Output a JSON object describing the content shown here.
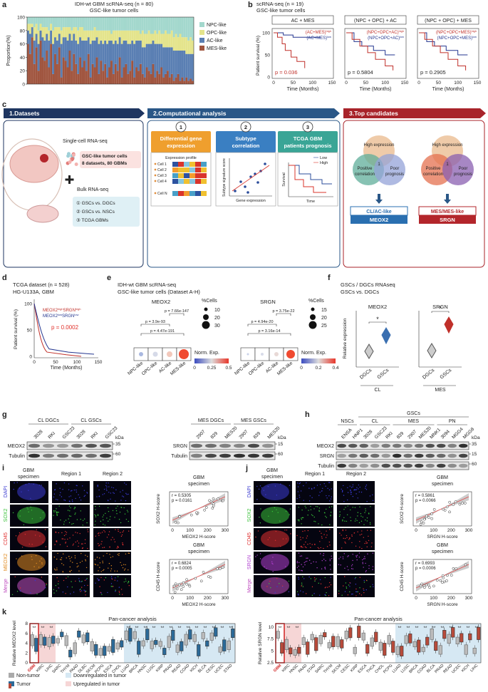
{
  "a": {
    "letter": "a",
    "title": "IDH-wt GBM scRNA-seq (n = 80)",
    "subtitle": "GSC-like tumor cells",
    "chart": {
      "type": "stacked_bar",
      "ylabel": "Proportion(%)",
      "ylim": [
        0,
        100
      ],
      "yticks": [
        0,
        20,
        40,
        60,
        80,
        100
      ],
      "series": [
        {
          "name": "MES-like",
          "color": "#a0553f",
          "values": [
            60,
            45,
            70,
            30,
            55,
            20,
            65,
            40,
            35,
            50,
            25,
            60,
            15,
            45,
            30,
            55,
            10,
            40,
            35,
            25,
            50,
            20,
            45,
            30,
            15,
            40,
            25,
            35,
            20,
            45,
            10,
            30,
            25,
            40,
            15,
            35,
            20,
            30,
            10,
            25,
            35,
            15,
            30,
            20,
            40,
            10,
            25,
            30,
            15,
            20,
            35,
            10,
            25,
            20,
            30,
            15,
            10,
            25,
            20,
            15,
            30,
            10,
            20,
            15,
            25,
            10,
            15,
            20,
            10,
            15,
            5,
            10,
            15,
            5,
            10,
            5,
            10,
            5,
            8,
            5
          ]
        },
        {
          "name": "AC-like",
          "color": "#5a7fb3",
          "values": [
            20,
            30,
            15,
            35,
            20,
            40,
            15,
            30,
            30,
            25,
            40,
            20,
            45,
            25,
            35,
            20,
            50,
            30,
            35,
            40,
            25,
            45,
            30,
            35,
            45,
            30,
            40,
            30,
            45,
            25,
            50,
            35,
            40,
            30,
            45,
            30,
            40,
            35,
            50,
            40,
            30,
            45,
            35,
            40,
            30,
            50,
            40,
            35,
            45,
            40,
            30,
            50,
            40,
            45,
            35,
            40,
            45,
            35,
            40,
            45,
            35,
            50,
            40,
            45,
            35,
            45,
            40,
            35,
            45,
            40,
            45,
            40,
            35,
            45,
            40,
            45,
            35,
            40,
            37,
            40
          ]
        },
        {
          "name": "OPC-like",
          "color": "#e4e48c",
          "values": [
            10,
            15,
            5,
            20,
            15,
            20,
            10,
            15,
            20,
            10,
            15,
            10,
            20,
            15,
            20,
            10,
            20,
            15,
            15,
            20,
            10,
            15,
            10,
            20,
            20,
            15,
            20,
            15,
            15,
            10,
            20,
            15,
            20,
            10,
            20,
            15,
            20,
            15,
            20,
            15,
            10,
            20,
            15,
            20,
            10,
            20,
            15,
            15,
            20,
            20,
            15,
            20,
            15,
            15,
            10,
            25,
            20,
            15,
            20,
            15,
            10,
            20,
            15,
            20,
            15,
            20,
            25,
            20,
            20,
            25,
            20,
            25,
            20,
            25,
            20,
            20,
            25,
            20,
            25,
            20
          ]
        },
        {
          "name": "NPC-like",
          "color": "#a3d8cd",
          "values": [
            10,
            10,
            10,
            15,
            10,
            20,
            10,
            15,
            15,
            15,
            20,
            10,
            20,
            15,
            15,
            15,
            20,
            15,
            15,
            15,
            15,
            20,
            15,
            15,
            20,
            15,
            15,
            20,
            20,
            20,
            20,
            20,
            15,
            20,
            20,
            20,
            20,
            20,
            20,
            20,
            25,
            20,
            20,
            20,
            20,
            20,
            20,
            20,
            20,
            20,
            20,
            20,
            20,
            20,
            25,
            20,
            25,
            25,
            20,
            25,
            25,
            20,
            25,
            20,
            25,
            25,
            20,
            25,
            25,
            20,
            30,
            25,
            30,
            25,
            30,
            30,
            30,
            35,
            30,
            35
          ]
        }
      ]
    }
  },
  "b": {
    "letter": "b",
    "title": "scRNA-seq (n = 19)",
    "subtitle": "GSC-like tumor cells",
    "ylabel": "Patient survival (%)",
    "xlabel": "Time (Months)",
    "yticks": [
      "0",
      "50",
      "100"
    ],
    "xticks": [
      "0",
      "50",
      "100",
      "150"
    ],
    "sup_high": "high",
    "sup_low": "low",
    "plots": [
      {
        "header": "AC + MES",
        "group": "(AC+MES)",
        "p": "p = 0.036"
      },
      {
        "header": "(NPC + OPC) + AC",
        "group": "(NPC+OPC+AC)",
        "p": "p = 0.5804"
      },
      {
        "header": "(NPC + OPC) + MES",
        "group": "(NPC+OPC+MES)",
        "p": "p = 0.2905"
      }
    ]
  },
  "c": {
    "letter": "c",
    "steps": [
      "1.Datasets",
      "2.Computational analysis",
      "3.Top candidates"
    ],
    "sc": "Single-cell RNA-seq",
    "gsc": "GSC-like tumor cells",
    "gsc2": "8 datasets, 80 GBMs",
    "bulk": "Bulk RNA-seq",
    "bulk_items": [
      "① GSCs vs. DGCs",
      "② GSCs vs. NSCs",
      "③ TCGA GBMs"
    ],
    "numbers": [
      "1",
      "2",
      "3"
    ],
    "methods": [
      [
        "Differential gene",
        "expression"
      ],
      [
        "Subtype",
        "correlation"
      ],
      [
        "TCGA GBM",
        "patients prognosis"
      ]
    ],
    "expr": "Expression profile",
    "cells": [
      "Cell 1",
      "Cell 2",
      "Cell 3",
      "Cell 4",
      "Cell N"
    ],
    "subtype_y": "Subtype signature score",
    "gene_x": "Gene expression",
    "low": "Low",
    "high": "High",
    "survival": "Survival",
    "time": "Time",
    "venn": [
      [
        "High expression"
      ],
      [
        "Positive",
        "correlation"
      ],
      [
        "Poor",
        "prognosis"
      ]
    ],
    "venn_center": "1",
    "results": [
      {
        "subtype": "CL/AC-like",
        "gene": "MEOX2"
      },
      {
        "subtype": "MES/MES-like",
        "gene": "SRGN"
      }
    ]
  },
  "d": {
    "letter": "d",
    "title": "TCGA dataset (n = 528)",
    "subtitle": "HG-U133A, GBM",
    "g1": "MEOX2",
    "g2": "SRGN",
    "sup_high": "high",
    "sup_low": "low",
    "p": "p = 0.0002",
    "ylabel": "Patient survival (%)",
    "xlabel": "Time (Months)",
    "yticks": [
      "0",
      "50",
      "100"
    ],
    "xticks": [
      "0",
      "50",
      "100",
      "150"
    ]
  },
  "e": {
    "letter": "e",
    "title": "IDH-wt GBM scRNA-seq",
    "subtitle": "GSC-like tumor cells (Dataset A-H)",
    "cats": [
      "NPC-like",
      "OPC-like",
      "AC-like",
      "MES-like"
    ],
    "pct": "%Cells",
    "norm": "Norm. Exp.",
    "genes": [
      {
        "name": "MEOX2",
        "p": [
          "p = 7.66e-147",
          "p = 3.9e-93",
          "p = 4.47e-191"
        ],
        "sizes": [
          "10",
          "20",
          "30"
        ],
        "scale": [
          "0",
          "0.25",
          "0.5"
        ]
      },
      {
        "name": "SRGN",
        "p": [
          "p = 3.75e-22",
          "p = 4.94e-20",
          "p = 3.16e-14"
        ],
        "sizes": [
          "15",
          "20",
          "25"
        ],
        "scale": [
          "0",
          "0.2",
          "0.4"
        ]
      }
    ]
  },
  "f": {
    "letter": "f",
    "title": "GSCs / DGCs RNAseq",
    "subtitle": "GSCs vs. DGCs",
    "ylabel": "Relative expression",
    "cats": [
      "DGCs",
      "GSCs"
    ],
    "star": "*",
    "plots": [
      {
        "gene": "MEOX2",
        "group": "CL"
      },
      {
        "gene": "SRGN",
        "group": "MES"
      }
    ]
  },
  "g": {
    "letter": "g",
    "kda": "kDa",
    "blots": [
      {
        "groups": [
          "CL DGCs",
          "CL GSCs"
        ],
        "lanes": [
          "3028",
          "RKI",
          "GSC23",
          "3028",
          "RKI",
          "GSC23"
        ],
        "rows": [
          "MEOX2",
          "Tubulin"
        ],
        "sizes": [
          "35",
          "60"
        ]
      },
      {
        "groups": [
          "MES DGCs",
          "MES GSCs"
        ],
        "lanes": [
          "2907",
          "839",
          "MES20",
          "2907",
          "839",
          "MES20"
        ],
        "rows": [
          "SRGN",
          "Tubulin"
        ],
        "sizes": [
          "15",
          "60"
        ]
      }
    ]
  },
  "h": {
    "letter": "h",
    "top": "GSCs",
    "kda": "kDa",
    "groups": [
      "NSCs",
      "CL",
      "MES",
      "PN"
    ],
    "lanes": [
      "ENSA",
      "HNP1",
      "3028",
      "GSC23",
      "RKI",
      "839",
      "2907",
      "MES20",
      "MNK1",
      "3094",
      "MGG4",
      "MGG8"
    ],
    "rows": [
      "MEOX2",
      "SRGN",
      "Tubulin"
    ],
    "sizes": [
      "35",
      "15",
      "60"
    ]
  },
  "i": {
    "letter": "i",
    "cols": [
      "GBM",
      "specimen",
      "Region 1",
      "Region 2"
    ],
    "rows": [
      "DAPI",
      "SOX2",
      "CD45",
      "MEOX2",
      "Merge"
    ],
    "ticks": [
      "0",
      "100",
      "200",
      "300"
    ],
    "scatter": [
      {
        "title": "GBM",
        "title2": "specimen",
        "r": "r = 0.5305",
        "p": "p = 0.0161",
        "ylabel": "SOX2 H-score",
        "xlabel": "MEOX2 H-score"
      },
      {
        "title": "GBM",
        "title2": "specimen",
        "r": "r = 0.6824",
        "p": "p = 0.0005",
        "ylabel": "CD45 H-score",
        "xlabel": "MEOX2 H-score"
      }
    ]
  },
  "j": {
    "letter": "j",
    "cols": [
      "GBM",
      "specimen",
      "Region 1",
      "Region 2"
    ],
    "rows": [
      "DAPI",
      "SOX2",
      "CD45",
      "SRGN",
      "Merge"
    ],
    "ticks": [
      "0",
      "100",
      "200",
      "300"
    ],
    "scatter": [
      {
        "title": "GBM",
        "title2": "specimen",
        "r": "r = 0.5861",
        "p": "p = 0.0066",
        "ylabel": "SOX2 H-score",
        "xlabel": "SRGN H-score"
      },
      {
        "title": "GBM",
        "title2": "specimen",
        "r": "r = 0.6993",
        "p": "p = 0.0006",
        "ylabel": "CD45 H-score",
        "xlabel": "SRGN H-score"
      }
    ]
  },
  "k": {
    "letter": "k",
    "star": "**",
    "legend": [
      "Non-tumor",
      "Tumor",
      "Downregulated in tumor",
      "Upregulated in tumor"
    ],
    "plots": [
      {
        "title": "Pan-cancer analysis",
        "ylabel": "Relative MEOX2 level",
        "yticks": [
          "0",
          "2",
          "4",
          "6",
          "8"
        ],
        "cats": [
          "GBM",
          "KIRC",
          "LIHC",
          "SARC",
          "THYM",
          "PAAD",
          "DLBC",
          "SKCM",
          "PCPG",
          "ESCA",
          "CHOL",
          "LUAD",
          "BRCA",
          "HNSC",
          "LUSC",
          "KIRP",
          "PRAD",
          "READ",
          "COAD",
          "KICH",
          "BLCA",
          "CESC",
          "UCEC",
          "STAD"
        ]
      },
      {
        "title": "Pan-cancer analysis",
        "ylabel": "Relative SRGN level",
        "yticks": [
          "2.5",
          "5",
          "7.5",
          "10"
        ],
        "cats": [
          "GBM",
          "KIRC",
          "HNSC",
          "PAAD",
          "STAD",
          "SARC",
          "THYM",
          "SKCM",
          "CESC",
          "KIRP",
          "ESCA",
          "THCA",
          "CHOL",
          "PCPG",
          "LUAD",
          "LUSC",
          "BRCA",
          "COAD",
          "BLCA",
          "PRAD",
          "READ",
          "UCEC",
          "KICH",
          "LIHC"
        ]
      }
    ]
  }
}
